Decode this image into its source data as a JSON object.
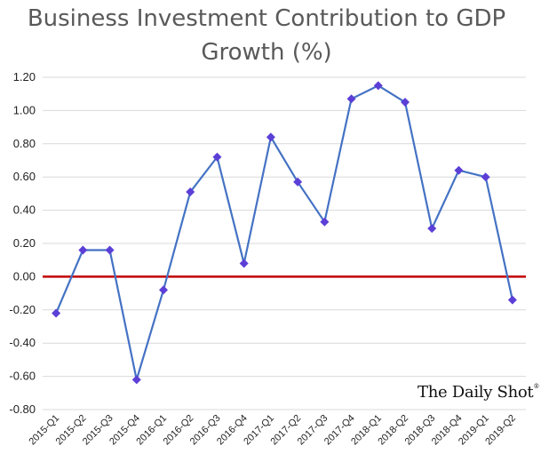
{
  "chart_data": {
    "type": "line",
    "title_line1": "Business Investment Contribution to GDP",
    "title_line2": "Growth (%)",
    "xlabel": "",
    "ylabel": "",
    "categories": [
      "2015-Q1",
      "2015-Q2",
      "2015-Q3",
      "2015-Q4",
      "2016-Q1",
      "2016-Q2",
      "2016-Q3",
      "2016-Q4",
      "2017-Q1",
      "2017-Q2",
      "2017-Q3",
      "2017-Q4",
      "2018-Q1",
      "2018-Q2",
      "2018-Q3",
      "2018-Q4",
      "2019-Q1",
      "2019-Q2"
    ],
    "series": [
      {
        "values": [
          -0.22,
          0.16,
          0.16,
          -0.62,
          -0.08,
          0.51,
          0.72,
          0.08,
          0.84,
          0.57,
          0.33,
          1.07,
          1.15,
          1.05,
          0.29,
          0.64,
          0.6,
          -0.14
        ]
      }
    ],
    "ylim": [
      -0.8,
      1.2
    ],
    "yticks": [
      "1.20",
      "1.00",
      "0.80",
      "0.60",
      "0.40",
      "0.20",
      "0.00",
      "-0.20",
      "-0.40",
      "-0.60",
      "-0.80"
    ],
    "grid": "horizontal",
    "legend": "none",
    "reference_line": 0,
    "colors": {
      "line": "#4472C4",
      "marker": "#5B3FD6",
      "zero_line": "#C00000",
      "grid": "#D9D9D9"
    },
    "marker": "diamond"
  },
  "watermark": {
    "text": "The Daily Shot",
    "mark": "®"
  }
}
